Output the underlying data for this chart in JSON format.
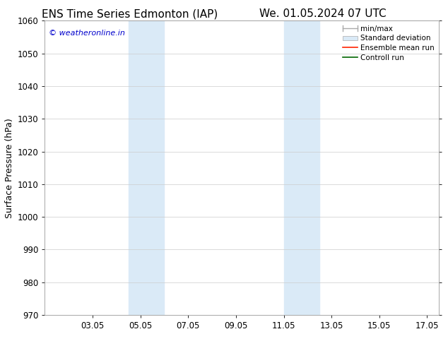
{
  "title_left": "ENS Time Series Edmonton (IAP)",
  "title_right": "We. 01.05.2024 07 UTC",
  "ylabel": "Surface Pressure (hPa)",
  "ylim": [
    970,
    1060
  ],
  "yticks": [
    970,
    980,
    990,
    1000,
    1010,
    1020,
    1030,
    1040,
    1050,
    1060
  ],
  "xlim": [
    1.0,
    17.5
  ],
  "xtick_labels": [
    "03.05",
    "05.05",
    "07.05",
    "09.05",
    "11.05",
    "13.05",
    "15.05",
    "17.05"
  ],
  "xtick_positions": [
    3,
    5,
    7,
    9,
    11,
    13,
    15,
    17
  ],
  "shaded_bands": [
    {
      "x_start": 4.5,
      "x_end": 6.0,
      "color": "#daeaf7"
    },
    {
      "x_start": 11.0,
      "x_end": 12.5,
      "color": "#daeaf7"
    }
  ],
  "watermark_text": "© weatheronline.in",
  "watermark_color": "#0000cc",
  "background_color": "#ffffff",
  "grid_color": "#cccccc",
  "title_fontsize": 11,
  "axis_label_fontsize": 9,
  "tick_fontsize": 8.5,
  "legend_fontsize": 7.5
}
